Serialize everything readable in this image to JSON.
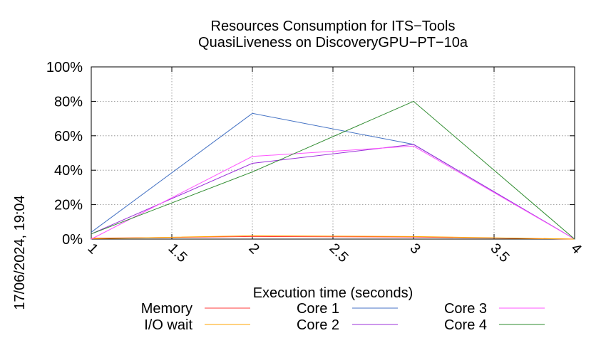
{
  "chart_data": {
    "type": "line",
    "title": "Resources Consumption for ITS−Tools",
    "subtitle": "QuasiLiveness on DiscoveryGPU−PT−10a",
    "xlabel": "Execution time (seconds)",
    "ylabel": "",
    "side_label": "17/06/2024, 19:04",
    "xlim": [
      1,
      4
    ],
    "ylim": [
      0,
      100
    ],
    "x_ticks": [
      {
        "value": 1,
        "label": "1"
      },
      {
        "value": 1.5,
        "label": "1.5"
      },
      {
        "value": 2,
        "label": "2"
      },
      {
        "value": 2.5,
        "label": "2.5"
      },
      {
        "value": 3,
        "label": "3"
      },
      {
        "value": 3.5,
        "label": "3.5"
      },
      {
        "value": 4,
        "label": "4"
      }
    ],
    "y_ticks": [
      {
        "value": 0,
        "label": "0%"
      },
      {
        "value": 20,
        "label": "20%"
      },
      {
        "value": 40,
        "label": "40%"
      },
      {
        "value": 60,
        "label": "60%"
      },
      {
        "value": 80,
        "label": "80%"
      },
      {
        "value": 100,
        "label": "100%"
      }
    ],
    "grid": true,
    "legend_position": "bottom",
    "x": [
      1,
      2,
      3,
      4
    ],
    "series": [
      {
        "name": "Memory",
        "color": "#ff3b3b",
        "values": [
          0.5,
          1.5,
          1.2,
          0
        ]
      },
      {
        "name": "I/O wait",
        "color": "#ffa500",
        "values": [
          0.2,
          2.0,
          1.5,
          0
        ]
      },
      {
        "name": "Core 1",
        "color": "#4472c4",
        "values": [
          4,
          73,
          55,
          0
        ]
      },
      {
        "name": "Core 2",
        "color": "#9b30d9",
        "values": [
          3,
          44,
          55,
          0
        ]
      },
      {
        "name": "Core 3",
        "color": "#ff55ff",
        "values": [
          0,
          48,
          54,
          0
        ]
      },
      {
        "name": "Core 4",
        "color": "#2e8b2e",
        "values": [
          3,
          39,
          80,
          0
        ]
      }
    ]
  }
}
